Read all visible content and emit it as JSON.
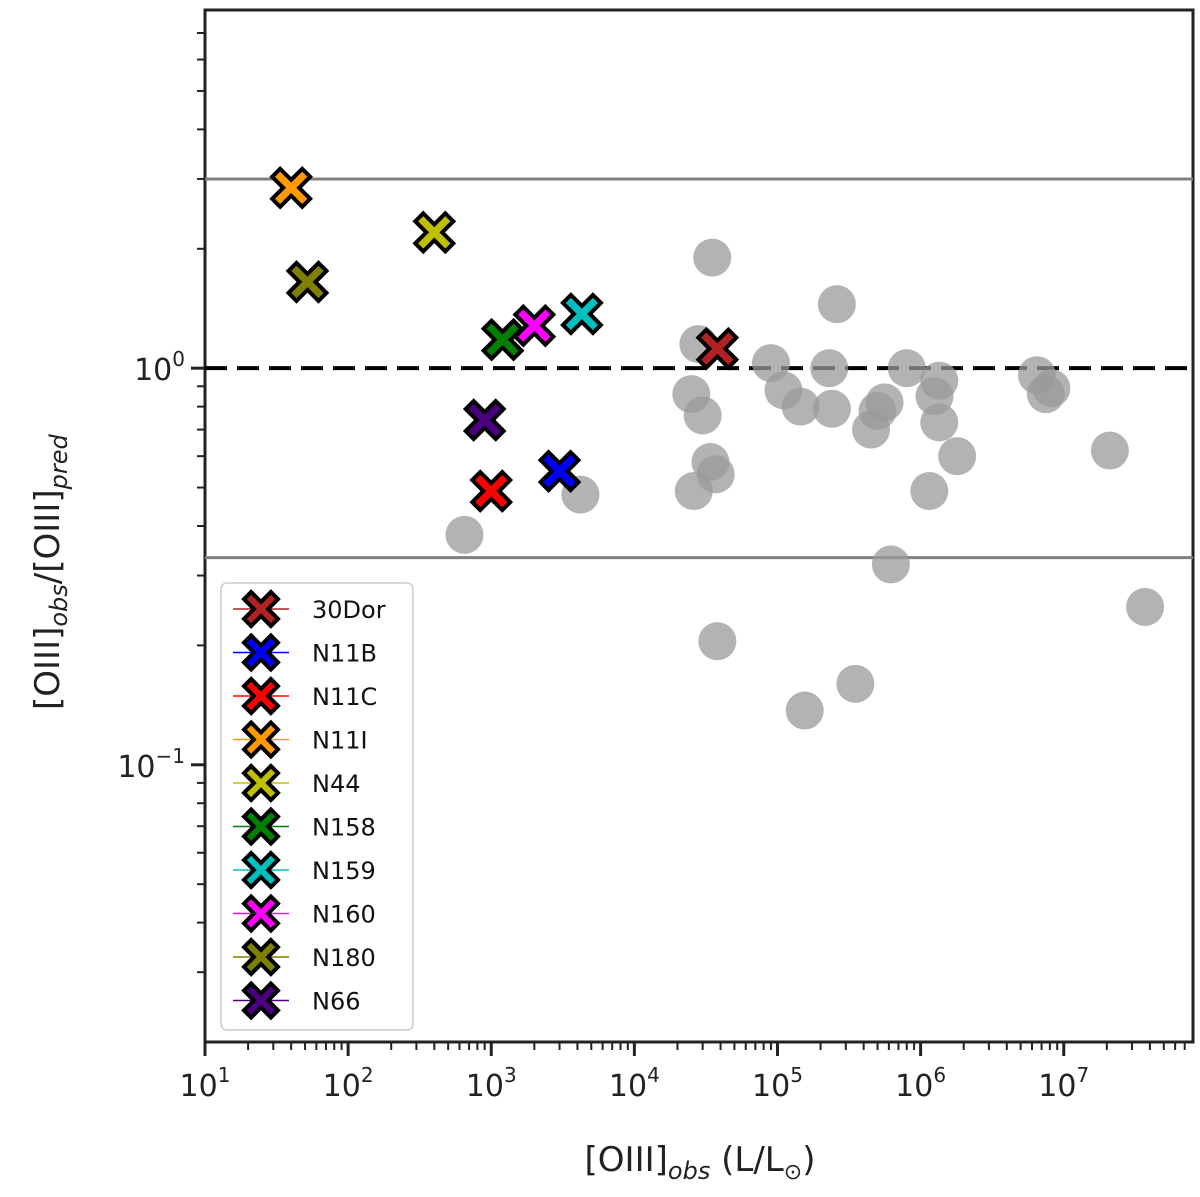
{
  "chart_data": {
    "type": "scatter",
    "title": "",
    "xlabel_main": "[OIII]",
    "xlabel_sub": "obs",
    "xlabel_tail": " (L/L",
    "xlabel_sun": "⊙",
    "xlabel_close": ")",
    "ylabel_main1": "[OIII]",
    "ylabel_sub1": "obs",
    "ylabel_mid": "/[OIII]",
    "ylabel_sub2": "pred",
    "xscale": "log",
    "yscale": "log",
    "xlim": [
      10,
      80000000
    ],
    "ylim": [
      0.02,
      8
    ],
    "x_ticks": [
      {
        "base": "10",
        "exp": "1",
        "value": 10
      },
      {
        "base": "10",
        "exp": "2",
        "value": 100
      },
      {
        "base": "10",
        "exp": "3",
        "value": 1000
      },
      {
        "base": "10",
        "exp": "4",
        "value": 10000
      },
      {
        "base": "10",
        "exp": "5",
        "value": 100000
      },
      {
        "base": "10",
        "exp": "6",
        "value": 1000000
      },
      {
        "base": "10",
        "exp": "7",
        "value": 10000000
      }
    ],
    "y_ticks": [
      {
        "base": "10",
        "exp": "0",
        "value": 1
      },
      {
        "base": "10",
        "exp": "−1",
        "value": 0.1
      }
    ],
    "reference_lines": [
      {
        "y": 1.0,
        "style": "dashed",
        "color": "#000000"
      },
      {
        "y": 3.0,
        "style": "solid",
        "color": "#808080"
      },
      {
        "y": 0.333,
        "style": "solid",
        "color": "#808080"
      }
    ],
    "grey_points": [
      {
        "x": 650,
        "y": 0.38
      },
      {
        "x": 4200,
        "y": 0.48
      },
      {
        "x": 26000,
        "y": 0.49
      },
      {
        "x": 25000,
        "y": 0.86
      },
      {
        "x": 30000,
        "y": 0.76
      },
      {
        "x": 28000,
        "y": 1.15
      },
      {
        "x": 34000,
        "y": 0.58
      },
      {
        "x": 37000,
        "y": 0.54
      },
      {
        "x": 35000,
        "y": 1.9
      },
      {
        "x": 38000,
        "y": 0.205
      },
      {
        "x": 90000,
        "y": 1.03
      },
      {
        "x": 110000,
        "y": 0.88
      },
      {
        "x": 145000,
        "y": 0.8
      },
      {
        "x": 155000,
        "y": 0.137
      },
      {
        "x": 230000,
        "y": 1.0
      },
      {
        "x": 240000,
        "y": 0.79
      },
      {
        "x": 260000,
        "y": 1.45
      },
      {
        "x": 350000,
        "y": 0.16
      },
      {
        "x": 450000,
        "y": 0.7
      },
      {
        "x": 500000,
        "y": 0.78
      },
      {
        "x": 560000,
        "y": 0.82
      },
      {
        "x": 620000,
        "y": 0.32
      },
      {
        "x": 800000,
        "y": 1.0
      },
      {
        "x": 1150000,
        "y": 0.49
      },
      {
        "x": 1250000,
        "y": 0.85
      },
      {
        "x": 1350000,
        "y": 0.93
      },
      {
        "x": 1350000,
        "y": 0.73
      },
      {
        "x": 1800000,
        "y": 0.6
      },
      {
        "x": 6500000,
        "y": 0.96
      },
      {
        "x": 7500000,
        "y": 0.86
      },
      {
        "x": 8200000,
        "y": 0.89
      },
      {
        "x": 21000000,
        "y": 0.62
      },
      {
        "x": 37000000,
        "y": 0.25
      }
    ],
    "series": [
      {
        "name": "30Dor",
        "color": "#b22222",
        "x": 38000,
        "y": 1.12
      },
      {
        "name": "N11B",
        "color": "#0000ff",
        "x": 3000,
        "y": 0.55
      },
      {
        "name": "N11C",
        "color": "#ff0000",
        "x": 1000,
        "y": 0.49
      },
      {
        "name": "N11I",
        "color": "#ff9900",
        "x": 40,
        "y": 2.85
      },
      {
        "name": "N44",
        "color": "#bfbf00",
        "x": 400,
        "y": 2.2
      },
      {
        "name": "N158",
        "color": "#007f00",
        "x": 1200,
        "y": 1.18
      },
      {
        "name": "N159",
        "color": "#00bfbf",
        "x": 4300,
        "y": 1.37
      },
      {
        "name": "N160",
        "color": "#ff00ff",
        "x": 2000,
        "y": 1.28
      },
      {
        "name": "N180",
        "color": "#808000",
        "x": 52,
        "y": 1.65
      },
      {
        "name": "N66",
        "color": "#4b0082",
        "x": 900,
        "y": 0.74
      }
    ],
    "legend": {
      "position": "lower-left"
    }
  }
}
